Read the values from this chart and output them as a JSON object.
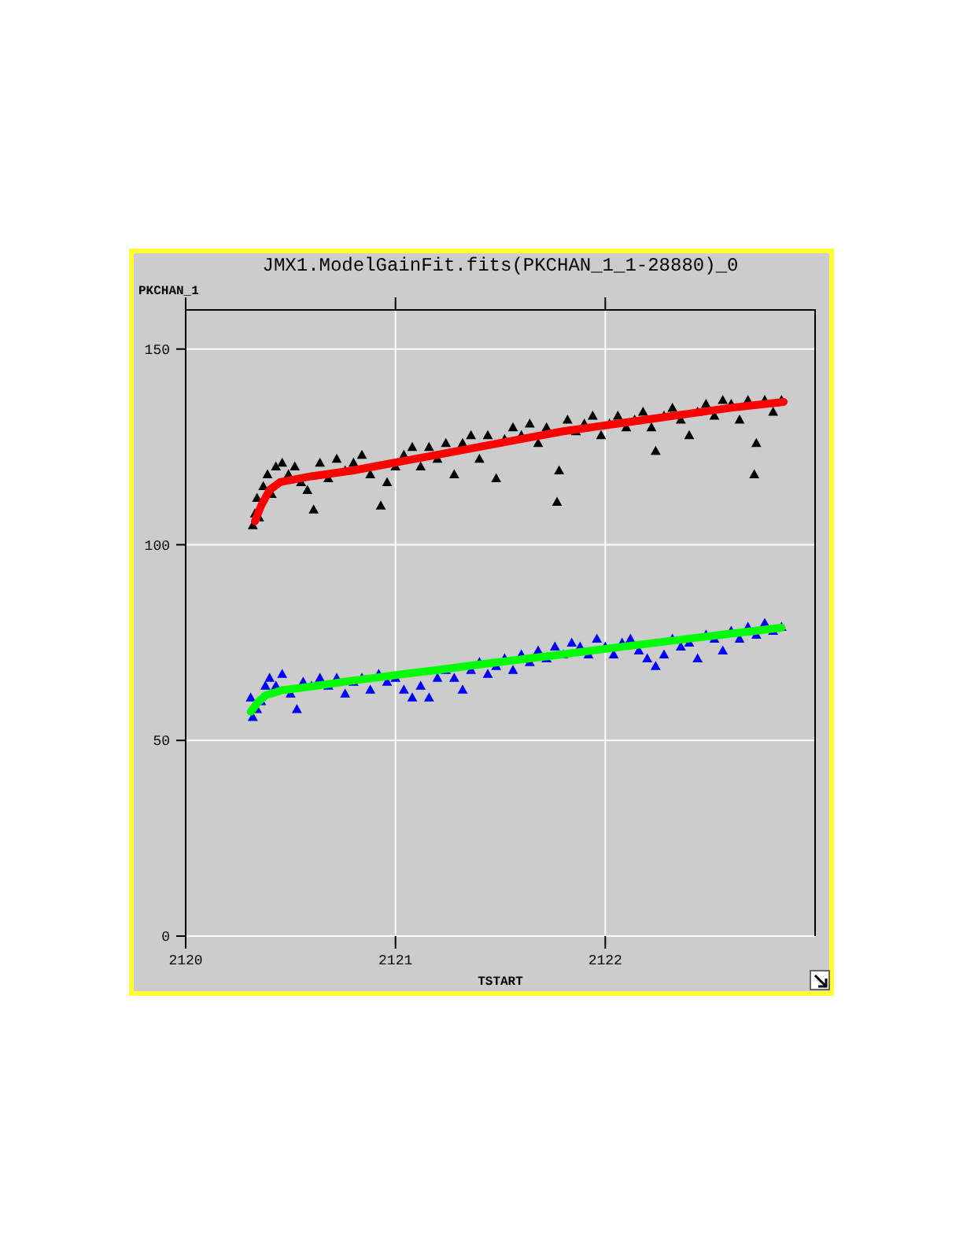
{
  "chart_data": {
    "type": "scatter",
    "title": "JMX1.ModelGainFit.fits(PKCHAN_1_1-28880)_0",
    "xlabel": "TSTART",
    "ylabel": "PKCHAN_1",
    "xlim": [
      2120,
      2123
    ],
    "ylim": [
      0,
      160
    ],
    "xticks": [
      2120,
      2121,
      2122
    ],
    "yticks": [
      0,
      50,
      100,
      150
    ],
    "grid": true,
    "marker": "triangle",
    "series": [
      {
        "color": "#000000",
        "x": [
          2120.32,
          2120.33,
          2120.34,
          2120.35,
          2120.37,
          2120.39,
          2120.41,
          2120.43,
          2120.46,
          2120.49,
          2120.52,
          2120.55,
          2120.58,
          2120.61,
          2120.64,
          2120.68,
          2120.72,
          2120.76,
          2120.8,
          2120.84,
          2120.88,
          2120.93,
          2120.96,
          2121,
          2121.04,
          2121.08,
          2121.12,
          2121.16,
          2121.2,
          2121.24,
          2121.28,
          2121.32,
          2121.36,
          2121.4,
          2121.44,
          2121.48,
          2121.52,
          2121.56,
          2121.6,
          2121.64,
          2121.68,
          2121.72,
          2121.77,
          2121.78,
          2121.82,
          2121.86,
          2121.9,
          2121.94,
          2121.98,
          2122.02,
          2122.06,
          2122.1,
          2122.14,
          2122.18,
          2122.22,
          2122.24,
          2122.28,
          2122.32,
          2122.36,
          2122.4,
          2122.44,
          2122.48,
          2122.52,
          2122.56,
          2122.6,
          2122.64,
          2122.68,
          2122.71,
          2122.72,
          2122.76,
          2122.8,
          2122.84
        ],
        "values": [
          105,
          108,
          112,
          107,
          115,
          118,
          113,
          120,
          121,
          118,
          120,
          116,
          114,
          109,
          121,
          117,
          122,
          119,
          121,
          123,
          118,
          110,
          116,
          120,
          123,
          125,
          120,
          125,
          122,
          126,
          118,
          126,
          128,
          122,
          128,
          117,
          127,
          130,
          128,
          131,
          126,
          130,
          111,
          119,
          132,
          129,
          131,
          133,
          128,
          131,
          133,
          130,
          132,
          134,
          130,
          124,
          133,
          135,
          132,
          128,
          134,
          136,
          133,
          137,
          136,
          132,
          137,
          118,
          126,
          137,
          134,
          137
        ]
      },
      {
        "type": "line",
        "color": "#ff0000",
        "marker": "none",
        "x": [
          2120.33,
          2120.36,
          2120.4,
          2120.45,
          2120.6,
          2120.8,
          2121,
          2121.2,
          2121.4,
          2121.6,
          2121.8,
          2122,
          2122.2,
          2122.4,
          2122.6,
          2122.85
        ],
        "values": [
          106,
          110,
          114,
          116,
          117.5,
          119,
          121,
          123,
          125,
          127,
          129,
          130.5,
          132,
          133.5,
          135,
          136.5
        ]
      },
      {
        "color": "#0000ff",
        "x": [
          2120.31,
          2120.32,
          2120.34,
          2120.36,
          2120.38,
          2120.4,
          2120.43,
          2120.46,
          2120.5,
          2120.53,
          2120.56,
          2120.6,
          2120.64,
          2120.68,
          2120.72,
          2120.76,
          2120.8,
          2120.84,
          2120.88,
          2120.92,
          2120.96,
          2121,
          2121.04,
          2121.08,
          2121.12,
          2121.16,
          2121.2,
          2121.24,
          2121.28,
          2121.32,
          2121.36,
          2121.4,
          2121.44,
          2121.48,
          2121.52,
          2121.56,
          2121.6,
          2121.64,
          2121.68,
          2121.72,
          2121.76,
          2121.8,
          2121.84,
          2121.88,
          2121.92,
          2121.96,
          2122,
          2122.04,
          2122.08,
          2122.12,
          2122.16,
          2122.2,
          2122.24,
          2122.28,
          2122.32,
          2122.36,
          2122.4,
          2122.44,
          2122.48,
          2122.52,
          2122.56,
          2122.6,
          2122.64,
          2122.68,
          2122.72,
          2122.76,
          2122.8,
          2122.84
        ],
        "values": [
          61,
          56,
          58,
          60,
          64,
          66,
          64,
          67,
          62,
          58,
          65,
          64,
          66,
          64,
          66,
          62,
          65,
          66,
          63,
          67,
          65,
          66,
          63,
          61,
          64,
          61,
          66,
          68,
          66,
          63,
          68,
          70,
          67,
          69,
          71,
          68,
          72,
          70,
          73,
          71,
          74,
          72,
          75,
          74,
          72,
          76,
          74,
          72,
          75,
          76,
          73,
          71,
          69,
          72,
          76,
          74,
          75,
          71,
          77,
          76,
          73,
          78,
          76,
          79,
          77,
          80,
          78,
          79
        ]
      },
      {
        "type": "line",
        "color": "#00ff00",
        "marker": "none",
        "x": [
          2120.31,
          2120.34,
          2120.38,
          2120.46,
          2120.6,
          2120.8,
          2121,
          2121.2,
          2121.4,
          2121.6,
          2121.8,
          2122,
          2122.2,
          2122.4,
          2122.6,
          2122.84
        ],
        "values": [
          57.3,
          59.5,
          61.5,
          62.8,
          63.8,
          65.3,
          66.7,
          68,
          69.4,
          70.7,
          72,
          73.4,
          74.7,
          76,
          77.3,
          78.8
        ]
      }
    ]
  }
}
